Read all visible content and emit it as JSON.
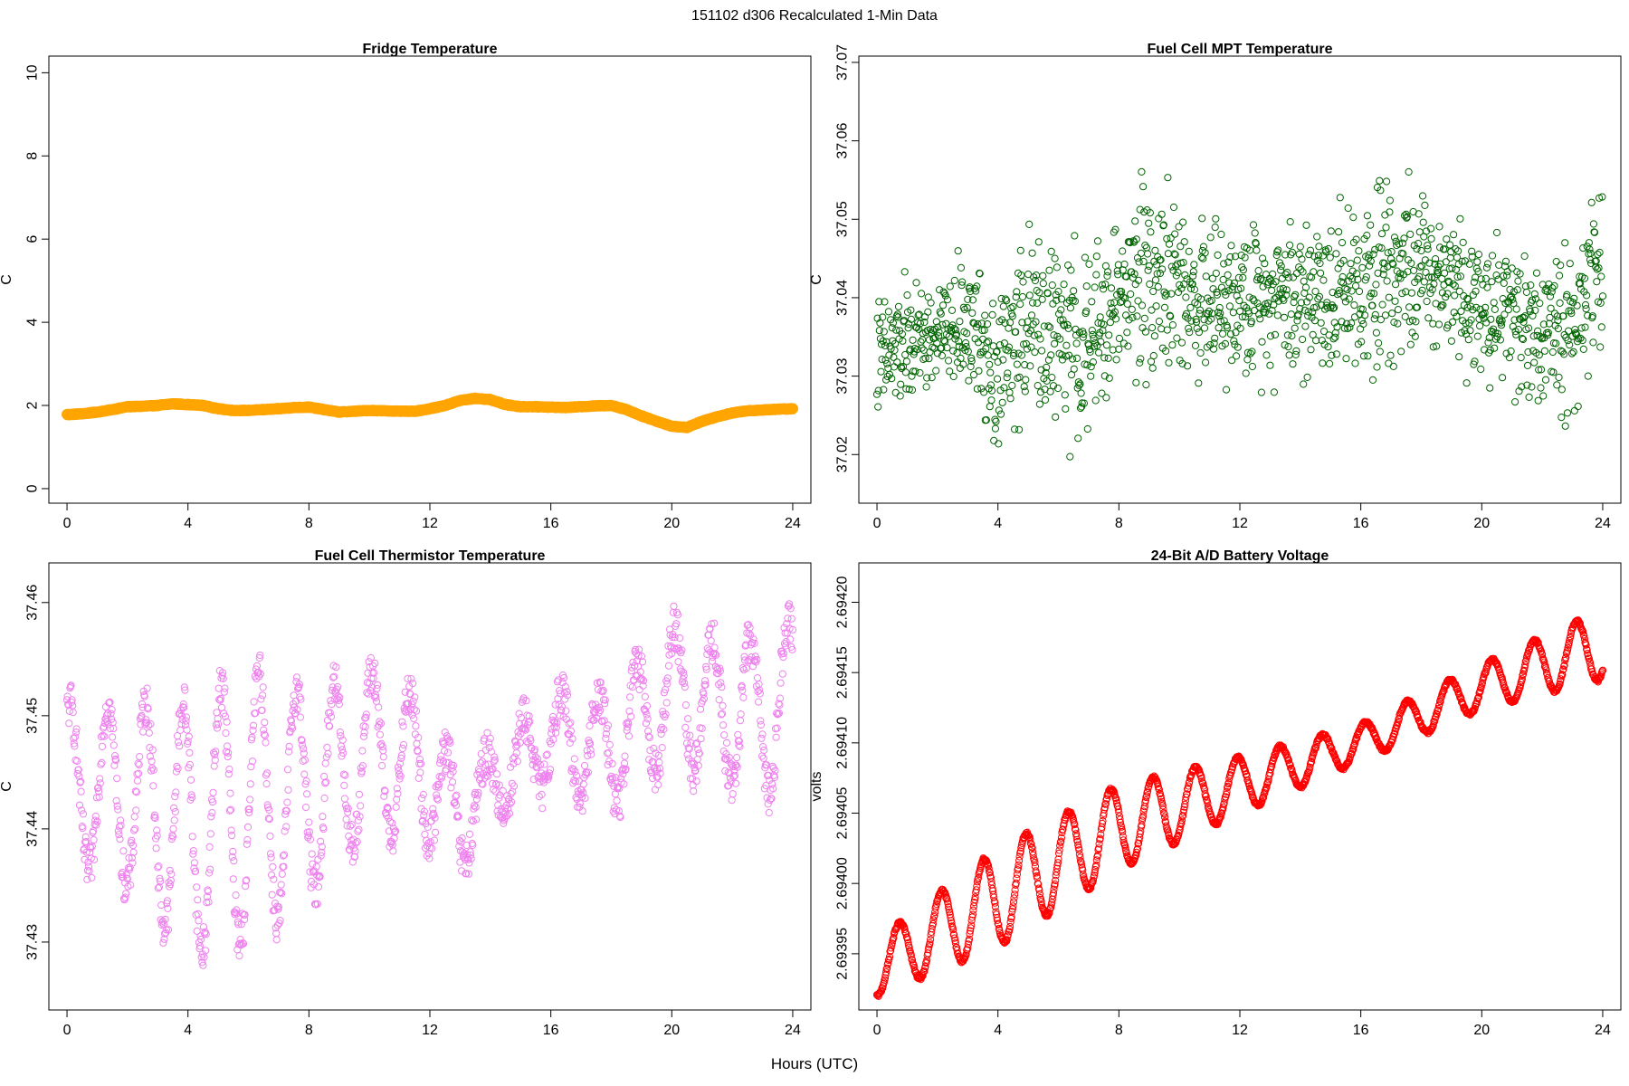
{
  "figure": {
    "title": "151102   d306   Recalculated 1-Min Data",
    "shared_xlabel": "Hours (UTC)"
  },
  "chart_data": [
    {
      "type": "scatter",
      "title": "Fridge Temperature",
      "xlabel": "Hours (UTC)",
      "ylabel": "C",
      "xlim": [
        -0.6,
        24.6
      ],
      "ylim": [
        -0.35,
        10.4
      ],
      "xticks": [
        0,
        4,
        8,
        12,
        16,
        20,
        24
      ],
      "yticks": [
        0,
        2,
        4,
        6,
        8,
        10
      ],
      "ytick_labels": [
        "0",
        "2",
        "4",
        "6",
        "8",
        "10"
      ],
      "marker": "circle-open-thick",
      "series": [
        {
          "name": "fridge_temperature",
          "color": "#ffa500",
          "x": [
            0,
            0.5,
            1,
            1.5,
            2,
            2.5,
            3,
            3.5,
            4,
            4.5,
            5,
            5.5,
            6,
            6.5,
            7,
            7.5,
            8,
            8.5,
            9,
            9.5,
            10,
            10.5,
            11,
            11.5,
            12,
            12.5,
            13,
            13.5,
            14,
            14.5,
            15,
            15.5,
            16,
            16.5,
            17,
            17.5,
            18,
            18.5,
            19,
            19.5,
            20,
            20.5,
            21,
            21.5,
            22,
            22.5,
            23,
            23.5,
            24
          ],
          "y": [
            1.78,
            1.8,
            1.84,
            1.9,
            1.97,
            1.98,
            2.0,
            2.04,
            2.02,
            2.0,
            1.92,
            1.88,
            1.88,
            1.9,
            1.92,
            1.95,
            1.96,
            1.9,
            1.84,
            1.86,
            1.88,
            1.87,
            1.86,
            1.86,
            1.92,
            2.0,
            2.12,
            2.17,
            2.14,
            2.02,
            1.97,
            1.97,
            1.96,
            1.95,
            1.97,
            1.99,
            2.0,
            1.9,
            1.75,
            1.62,
            1.5,
            1.47,
            1.62,
            1.73,
            1.82,
            1.87,
            1.89,
            1.91,
            1.92
          ]
        }
      ]
    },
    {
      "type": "scatter",
      "title": "Fuel Cell MPT Temperature",
      "xlabel": "Hours (UTC)",
      "ylabel": "C",
      "xlim": [
        -0.6,
        24.6
      ],
      "ylim": [
        37.0138,
        37.0708
      ],
      "xticks": [
        0,
        4,
        8,
        12,
        16,
        20,
        24
      ],
      "yticks": [
        37.02,
        37.03,
        37.04,
        37.05,
        37.06,
        37.07
      ],
      "ytick_labels": [
        "37.02",
        "37.03",
        "37.04",
        "37.05",
        "37.06",
        "37.07"
      ],
      "marker": "circle-open",
      "series": [
        {
          "name": "fuel_cell_mpt_temperature",
          "color": "#006400",
          "x": [
            0,
            1,
            2,
            3,
            4,
            5,
            6,
            7,
            8,
            9,
            10,
            11,
            12,
            13,
            14,
            15,
            16,
            17,
            18,
            19,
            20,
            21,
            22,
            23,
            24
          ],
          "y": [
            37.032,
            37.034,
            37.035,
            37.037,
            37.031,
            37.037,
            37.035,
            37.033,
            37.04,
            37.044,
            37.041,
            37.039,
            37.039,
            37.041,
            37.04,
            37.041,
            37.042,
            37.045,
            37.043,
            37.043,
            37.039,
            37.038,
            37.035,
            37.036,
            37.045
          ],
          "spread": [
            0.005,
            0.005,
            0.004,
            0.005,
            0.007,
            0.007,
            0.007,
            0.008,
            0.006,
            0.009,
            0.006,
            0.006,
            0.006,
            0.006,
            0.007,
            0.007,
            0.007,
            0.008,
            0.006,
            0.006,
            0.006,
            0.006,
            0.006,
            0.008,
            0.006
          ],
          "points_per_hour": 60
        }
      ]
    },
    {
      "type": "scatter",
      "title": "Fuel Cell Thermistor Temperature",
      "xlabel": "Hours (UTC)",
      "ylabel": "C",
      "xlim": [
        -0.6,
        24.6
      ],
      "ylim": [
        37.424,
        37.4635
      ],
      "xticks": [
        0,
        4,
        8,
        12,
        16,
        20,
        24
      ],
      "yticks": [
        37.43,
        37.44,
        37.45,
        37.46
      ],
      "ytick_labels": [
        "37.43",
        "37.44",
        "37.45",
        "37.46"
      ],
      "marker": "circle-open",
      "series": [
        {
          "name": "fuel_cell_thermistor_temperature",
          "color": "#ee82ee",
          "x": [
            0,
            2,
            4,
            6,
            8,
            10,
            12,
            13,
            14,
            16,
            18,
            20,
            22,
            24
          ],
          "y": [
            37.444,
            37.443,
            37.44,
            37.442,
            37.443,
            37.447,
            37.445,
            37.44,
            37.444,
            37.448,
            37.447,
            37.452,
            37.45,
            37.451
          ],
          "amplitude": [
            0.007,
            0.008,
            0.011,
            0.012,
            0.009,
            0.007,
            0.006,
            0.004,
            0.003,
            0.004,
            0.005,
            0.006,
            0.006,
            0.008
          ],
          "cycle_hours": 1.25,
          "points_per_hour": 60
        }
      ]
    },
    {
      "type": "scatter",
      "title": "24-Bit A/D Battery Voltage",
      "xlabel": "Hours (UTC)",
      "ylabel": "volts",
      "xlim": [
        -0.6,
        24.6
      ],
      "ylim": [
        2.69391,
        2.694228
      ],
      "xticks": [
        0,
        4,
        8,
        12,
        16,
        20,
        24
      ],
      "yticks": [
        2.69395,
        2.694,
        2.69405,
        2.6941,
        2.69415,
        2.6942
      ],
      "ytick_labels": [
        "2.69395",
        "2.69400",
        "2.69405",
        "2.69410",
        "2.69415",
        "2.69420"
      ],
      "marker": "circle-open",
      "series": [
        {
          "name": "battery_voltage_24bit",
          "color": "#ff0000",
          "x": [
            0,
            4,
            8,
            12,
            16,
            20,
            24
          ],
          "y": [
            2.69394,
            2.69399,
            2.69404,
            2.69407,
            2.6941,
            2.69414,
            2.69417
          ],
          "amplitude": [
            2e-05,
            3.5e-05,
            3e-05,
            2e-05,
            1.3e-05,
            1.6e-05,
            2.5e-05
          ],
          "cycle_hours": 1.4,
          "points_per_hour": 60
        }
      ]
    }
  ]
}
